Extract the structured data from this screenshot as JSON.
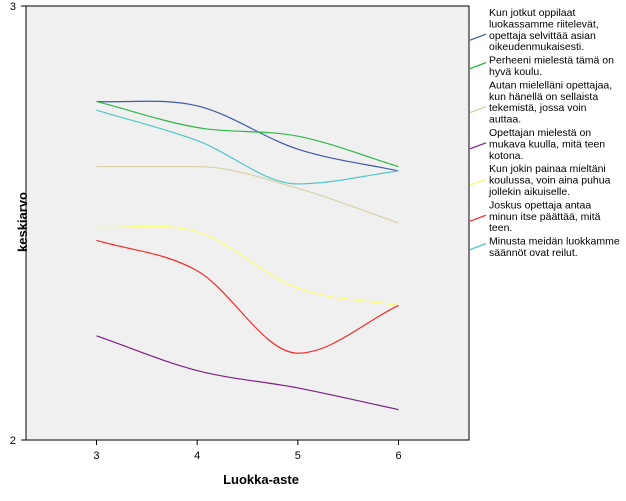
{
  "chart_data": {
    "type": "line",
    "xlabel": "Luokka-aste",
    "ylabel": "keskiarvo",
    "x": [
      3,
      4,
      5,
      6
    ],
    "xlim": [
      2.3,
      6.7
    ],
    "ylim": [
      2,
      3
    ],
    "x_ticks": [
      "3",
      "4",
      "5",
      "6"
    ],
    "y_ticks": [
      "2",
      "3"
    ],
    "plot_background": "#f0f0f0",
    "grid": false,
    "legend_position": "right",
    "series": [
      {
        "name": "Kun jotkut oppilaat luokassamme riitelevät, opettaja selvittää asian oikeudenmukaisesti.",
        "color": "#3d5aa8",
        "values": [
          2.78,
          2.77,
          2.67,
          2.62
        ]
      },
      {
        "name": "Perheeni mielestä tämä on hyvä koulu.",
        "color": "#2db845",
        "values": [
          2.78,
          2.72,
          2.7,
          2.63
        ]
      },
      {
        "name": "Autan mielelläni opettajaa, kun hänellä on sellaista tekemistä, jossa voin auttaa.",
        "color": "#d7d1a6",
        "values": [
          2.63,
          2.63,
          2.58,
          2.5
        ]
      },
      {
        "name": "Opettajan mielestä on mukava kuulla, mitä teen kotona.",
        "color": "#7b2182",
        "values": [
          2.24,
          2.16,
          2.12,
          2.07
        ]
      },
      {
        "name": "Kun jokin painaa mieltäni koulussa, voin aina puhua jollekin aikuiselle.",
        "color": "#fbfd6e",
        "values": [
          2.49,
          2.48,
          2.35,
          2.31
        ]
      },
      {
        "name": "Joskus opettaja antaa minun itse päättää, mitä teen.",
        "color": "#f32a2a",
        "values": [
          2.46,
          2.39,
          2.2,
          2.31
        ]
      },
      {
        "name": "Minusta meidän luokkamme säännöt ovat reilut.",
        "color": "#4fc8c8",
        "values": [
          2.76,
          2.69,
          2.59,
          2.62
        ]
      }
    ]
  }
}
